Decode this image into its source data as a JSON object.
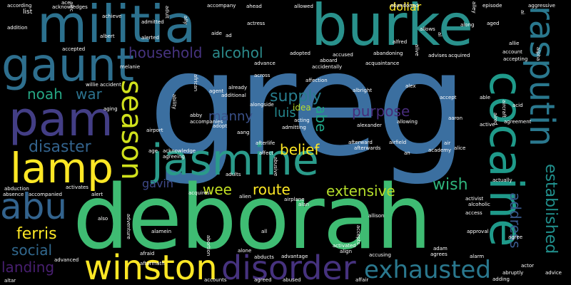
{
  "background_color": "#000000",
  "words": [
    {
      "text": "greg",
      "color": "#3b6fa0"
    },
    {
      "text": "deborah",
      "color": "#3fbc73"
    },
    {
      "text": "militia",
      "color": "#2c718e"
    },
    {
      "text": "burke",
      "color": "#29918c"
    },
    {
      "text": "pam",
      "color": "#433e85"
    },
    {
      "text": "gaunt",
      "color": "#2e6f8e"
    },
    {
      "text": "cocaine",
      "color": "#1f9a8a"
    },
    {
      "text": "rasputin",
      "color": "#2a788e"
    },
    {
      "text": "jasmine",
      "color": "#2a9b8a"
    },
    {
      "text": "lamp",
      "color": "#fde725"
    },
    {
      "text": "season",
      "color": "#d0e11c"
    },
    {
      "text": "abu",
      "color": "#33638d"
    },
    {
      "text": "winston",
      "color": "#fde725"
    },
    {
      "text": "disorder",
      "color": "#46327e"
    },
    {
      "text": "exhausted",
      "color": "#2a788e"
    },
    {
      "text": "household",
      "color": "#46337f"
    },
    {
      "text": "alcohol",
      "color": "#2c8b8c"
    },
    {
      "text": "supply",
      "color": "#287d8e"
    },
    {
      "text": "noah",
      "color": "#26a784"
    },
    {
      "text": "war",
      "color": "#2c728e"
    },
    {
      "text": "disaster",
      "color": "#33638d"
    },
    {
      "text": "belief",
      "color": "#fde725"
    },
    {
      "text": "purpose",
      "color": "#472c7a"
    },
    {
      "text": "manny",
      "color": "#3b528b"
    },
    {
      "text": "luis",
      "color": "#24878e"
    },
    {
      "text": "abe",
      "color": "#20a386"
    },
    {
      "text": "route",
      "color": "#fde725"
    },
    {
      "text": "extensive",
      "color": "#b5de2b"
    },
    {
      "text": "wish",
      "color": "#2fb47c"
    },
    {
      "text": "wee",
      "color": "#c2df23"
    },
    {
      "text": "gavin",
      "color": "#3e4989"
    },
    {
      "text": "ferris",
      "color": "#fde725"
    },
    {
      "text": "social",
      "color": "#31688e"
    },
    {
      "text": "landing",
      "color": "#481f70"
    },
    {
      "text": "address",
      "color": "#38588c"
    },
    {
      "text": "established",
      "color": "#21908d"
    },
    {
      "text": "dollar",
      "color": "#fde725"
    },
    {
      "text": "idea",
      "color": "#b8de29"
    },
    {
      "text": "abandoned",
      "color": "#ffffff"
    },
    {
      "text": "allowed",
      "color": "#ffffff"
    },
    {
      "text": "ahead",
      "color": "#ffffff"
    },
    {
      "text": "episode",
      "color": "#ffffff"
    },
    {
      "text": "aggressive",
      "color": "#ffffff"
    },
    {
      "text": "accompany",
      "color": "#ffffff"
    },
    {
      "text": "acknowledges",
      "color": "#ffffff"
    },
    {
      "text": "according",
      "color": "#ffffff"
    },
    {
      "text": "ace",
      "color": "#ffffff"
    },
    {
      "text": "aged",
      "color": "#ffffff"
    },
    {
      "text": "achieve",
      "color": "#ffffff"
    },
    {
      "text": "actress",
      "color": "#ffffff"
    },
    {
      "text": "list",
      "color": "#ffffff"
    },
    {
      "text": "addition",
      "color": "#ffffff"
    },
    {
      "text": "albert",
      "color": "#ffffff"
    },
    {
      "text": "alerted",
      "color": "#ffffff"
    },
    {
      "text": "admitted",
      "color": "#ffffff"
    },
    {
      "text": "aide",
      "color": "#ffffff"
    },
    {
      "text": "ad",
      "color": "#ffffff"
    },
    {
      "text": "alfred",
      "color": "#ffffff"
    },
    {
      "text": "advance",
      "color": "#ffffff"
    },
    {
      "text": "allows",
      "color": "#ffffff"
    },
    {
      "text": "along",
      "color": "#ffffff"
    },
    {
      "text": "allie",
      "color": "#ffffff"
    },
    {
      "text": "account",
      "color": "#ffffff"
    },
    {
      "text": "accepted",
      "color": "#ffffff"
    },
    {
      "text": "adopted",
      "color": "#ffffff"
    },
    {
      "text": "accused",
      "color": "#ffffff"
    },
    {
      "text": "abandoning",
      "color": "#ffffff"
    },
    {
      "text": "advises",
      "color": "#ffffff"
    },
    {
      "text": "acquired",
      "color": "#ffffff"
    },
    {
      "text": "accepting",
      "color": "#ffffff"
    },
    {
      "text": "aboard",
      "color": "#ffffff"
    },
    {
      "text": "acquaintance",
      "color": "#ffffff"
    },
    {
      "text": "accidentally",
      "color": "#ffffff"
    },
    {
      "text": "melanie",
      "color": "#ffffff"
    },
    {
      "text": "across",
      "color": "#ffffff"
    },
    {
      "text": "affection",
      "color": "#ffffff"
    },
    {
      "text": "additional",
      "color": "#ffffff"
    },
    {
      "text": "agent",
      "color": "#ffffff"
    },
    {
      "text": "already",
      "color": "#ffffff"
    },
    {
      "text": "albright",
      "color": "#ffffff"
    },
    {
      "text": "alex",
      "color": "#ffffff"
    },
    {
      "text": "accept",
      "color": "#ffffff"
    },
    {
      "text": "able",
      "color": "#ffffff"
    },
    {
      "text": "acid",
      "color": "#ffffff"
    },
    {
      "text": "accident",
      "color": "#ffffff"
    },
    {
      "text": "willie",
      "color": "#ffffff"
    },
    {
      "text": "alongside",
      "color": "#ffffff"
    },
    {
      "text": "aaron",
      "color": "#ffffff"
    },
    {
      "text": "allowing",
      "color": "#ffffff"
    },
    {
      "text": "agreement",
      "color": "#ffffff"
    },
    {
      "text": "abby",
      "color": "#ffffff"
    },
    {
      "text": "accompanies",
      "color": "#ffffff"
    },
    {
      "text": "acting",
      "color": "#ffffff"
    },
    {
      "text": "admitting",
      "color": "#ffffff"
    },
    {
      "text": "alexander",
      "color": "#ffffff"
    },
    {
      "text": "active",
      "color": "#ffffff"
    },
    {
      "text": "adopt",
      "color": "#ffffff"
    },
    {
      "text": "aang",
      "color": "#ffffff"
    },
    {
      "text": "airport",
      "color": "#ffffff"
    },
    {
      "text": "afterlife",
      "color": "#ffffff"
    },
    {
      "text": "afterward",
      "color": "#ffffff"
    },
    {
      "text": "afterwards",
      "color": "#ffffff"
    },
    {
      "text": "affect",
      "color": "#ffffff"
    },
    {
      "text": "airfield",
      "color": "#ffffff"
    },
    {
      "text": "academy",
      "color": "#ffffff"
    },
    {
      "text": "alice",
      "color": "#ffffff"
    },
    {
      "text": "an",
      "color": "#ffffff"
    },
    {
      "text": "air",
      "color": "#ffffff"
    },
    {
      "text": "age",
      "color": "#ffffff"
    },
    {
      "text": "acknowledge",
      "color": "#ffffff"
    },
    {
      "text": "agreeing",
      "color": "#ffffff"
    },
    {
      "text": "adults",
      "color": "#ffffff"
    },
    {
      "text": "actually",
      "color": "#ffffff"
    },
    {
      "text": "alien",
      "color": "#ffffff"
    },
    {
      "text": "airplane",
      "color": "#ffffff"
    },
    {
      "text": "alan",
      "color": "#ffffff"
    },
    {
      "text": "abduction",
      "color": "#ffffff"
    },
    {
      "text": "activates",
      "color": "#ffffff"
    },
    {
      "text": "acquires",
      "color": "#ffffff"
    },
    {
      "text": "absence",
      "color": "#ffffff"
    },
    {
      "text": "accompanied",
      "color": "#ffffff"
    },
    {
      "text": "alert",
      "color": "#ffffff"
    },
    {
      "text": "activist",
      "color": "#ffffff"
    },
    {
      "text": "alcoholic",
      "color": "#ffffff"
    },
    {
      "text": "access",
      "color": "#ffffff"
    },
    {
      "text": "allison",
      "color": "#ffffff"
    },
    {
      "text": "also",
      "color": "#ffffff"
    },
    {
      "text": "all",
      "color": "#ffffff"
    },
    {
      "text": "alamein",
      "color": "#ffffff"
    },
    {
      "text": "approval",
      "color": "#ffffff"
    },
    {
      "text": "agree",
      "color": "#ffffff"
    },
    {
      "text": "adam",
      "color": "#ffffff"
    },
    {
      "text": "agrees",
      "color": "#ffffff"
    },
    {
      "text": "accusing",
      "color": "#ffffff"
    },
    {
      "text": "align",
      "color": "#ffffff"
    },
    {
      "text": "activated",
      "color": "#ffffff"
    },
    {
      "text": "alone",
      "color": "#ffffff"
    },
    {
      "text": "advantage",
      "color": "#ffffff"
    },
    {
      "text": "alarm",
      "color": "#ffffff"
    },
    {
      "text": "abducts",
      "color": "#ffffff"
    },
    {
      "text": "advanced",
      "color": "#ffffff"
    },
    {
      "text": "afraid",
      "color": "#ffffff"
    },
    {
      "text": "aftermath",
      "color": "#ffffff"
    },
    {
      "text": "aging",
      "color": "#ffffff"
    },
    {
      "text": "actor",
      "color": "#ffffff"
    },
    {
      "text": "abruptly",
      "color": "#ffffff"
    },
    {
      "text": "advice",
      "color": "#ffffff"
    },
    {
      "text": "adding",
      "color": "#ffffff"
    },
    {
      "text": "altar",
      "color": "#ffffff"
    },
    {
      "text": "accounts",
      "color": "#ffffff"
    },
    {
      "text": "agreed",
      "color": "#ffffff"
    },
    {
      "text": "abused",
      "color": "#ffffff"
    },
    {
      "text": "affair",
      "color": "#ffffff"
    },
    {
      "text": "ally",
      "color": "#ffffff"
    },
    {
      "text": "alley",
      "color": "#ffffff"
    },
    {
      "text": "adult",
      "color": "#ffffff"
    },
    {
      "text": "alec",
      "color": "#ffffff"
    },
    {
      "text": "al",
      "color": "#ffffff"
    },
    {
      "text": "ai",
      "color": "#ffffff"
    },
    {
      "text": "alpha",
      "color": "#ffffff"
    },
    {
      "text": "alive",
      "color": "#ffffff"
    },
    {
      "text": "aired",
      "color": "#ffffff"
    },
    {
      "text": "aircraft",
      "color": "#ffffff"
    },
    {
      "text": "ability",
      "color": "#ffffff"
    },
    {
      "text": "african",
      "color": "#ffffff"
    },
    {
      "text": "abusive",
      "color": "#ffffff"
    },
    {
      "text": "accepts",
      "color": "#ffffff"
    },
    {
      "text": "abortion",
      "color": "#ffffff"
    },
    {
      "text": "adventure",
      "color": "#ffffff"
    }
  ]
}
